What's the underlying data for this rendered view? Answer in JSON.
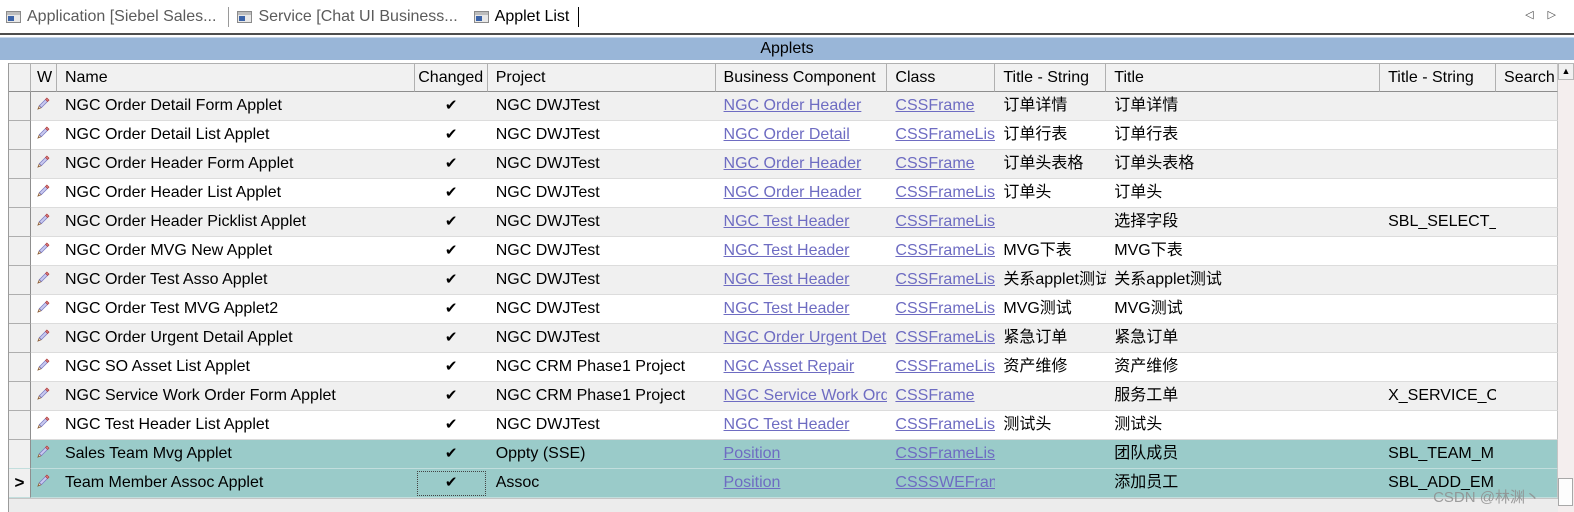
{
  "tab_bar": {
    "tabs": [
      {
        "label": "Application [Siebel Sales...",
        "active": false
      },
      {
        "label": "Service [Chat UI Business...",
        "active": false
      },
      {
        "label": "Applet List",
        "active": true
      }
    ],
    "scroll_left_icon": "◁",
    "scroll_right_icon": "▷"
  },
  "title_bar": {
    "title": "Applets",
    "bg_color": "#99b6d8"
  },
  "table": {
    "columns": [
      "",
      "W",
      "Name",
      "Changed",
      "Project",
      "Business Component",
      "Class",
      "Title - String",
      "Title",
      "Title - String",
      "Search"
    ],
    "current_row_marker": ">",
    "selected_row_color": "#9acbc9",
    "link_color": "#6e6cc2",
    "rows": [
      {
        "name": "NGC Order Detail Form Applet",
        "changed": "✔",
        "project": "NGC DWJTest",
        "bc": "NGC Order Header",
        "cls": "CSSFrame",
        "ts1": "订单详情",
        "title": "订单详情",
        "ts2": "",
        "search": "",
        "selected": false,
        "current": false
      },
      {
        "name": "NGC Order Detail List Applet",
        "changed": "✔",
        "project": "NGC DWJTest",
        "bc": "NGC Order Detail",
        "cls": "CSSFrameList",
        "ts1": "订单行表",
        "title": "订单行表",
        "ts2": "",
        "search": "",
        "selected": false,
        "current": false
      },
      {
        "name": "NGC Order Header Form Applet",
        "changed": "✔",
        "project": "NGC DWJTest",
        "bc": "NGC Order Header",
        "cls": "CSSFrame",
        "ts1": "订单头表格",
        "title": "订单头表格",
        "ts2": "",
        "search": "",
        "selected": false,
        "current": false
      },
      {
        "name": "NGC Order Header List Applet",
        "changed": "✔",
        "project": "NGC DWJTest",
        "bc": "NGC Order Header",
        "cls": "CSSFrameList",
        "ts1": "订单头",
        "title": "订单头",
        "ts2": "",
        "search": "",
        "selected": false,
        "current": false
      },
      {
        "name": "NGC Order Header Picklist Applet",
        "changed": "✔",
        "project": "NGC DWJTest",
        "bc": "NGC Test Header",
        "cls": "CSSFrameList",
        "ts1": "",
        "title": "选择字段",
        "ts2": "SBL_SELECT_",
        "search": "",
        "selected": false,
        "current": false
      },
      {
        "name": "NGC Order MVG New Applet",
        "changed": "✔",
        "project": "NGC DWJTest",
        "bc": "NGC Test Header",
        "cls": "CSSFrameList",
        "ts1": "MVG下表",
        "title": "MVG下表",
        "ts2": "",
        "search": "",
        "selected": false,
        "current": false
      },
      {
        "name": "NGC Order Test Asso Applet",
        "changed": "✔",
        "project": "NGC DWJTest",
        "bc": "NGC Test Header",
        "cls": "CSSFrameList",
        "ts1": "关系applet测试",
        "title": "关系applet测试",
        "ts2": "",
        "search": "",
        "selected": false,
        "current": false
      },
      {
        "name": "NGC Order Test MVG Applet2",
        "changed": "✔",
        "project": "NGC DWJTest",
        "bc": "NGC Test Header",
        "cls": "CSSFrameList",
        "ts1": "MVG测试",
        "title": "MVG测试",
        "ts2": "",
        "search": "",
        "selected": false,
        "current": false
      },
      {
        "name": "NGC Order Urgent Detail Applet",
        "changed": "✔",
        "project": "NGC DWJTest",
        "bc": "NGC Order Urgent Det",
        "cls": "CSSFrameList",
        "ts1": "紧急订单",
        "title": "紧急订单",
        "ts2": "",
        "search": "",
        "selected": false,
        "current": false
      },
      {
        "name": "NGC SO Asset List Applet",
        "changed": "✔",
        "project": "NGC CRM Phase1 Project",
        "bc": "NGC Asset Repair",
        "cls": "CSSFrameList",
        "ts1": "资产维修",
        "title": "资产维修",
        "ts2": "",
        "search": "",
        "selected": false,
        "current": false
      },
      {
        "name": "NGC Service Work Order Form Applet",
        "changed": "✔",
        "project": "NGC CRM Phase1 Project",
        "bc": "NGC Service Work Ord",
        "cls": "CSSFrame",
        "ts1": "",
        "title": "服务工单",
        "ts2": "X_SERVICE_O",
        "search": "",
        "selected": false,
        "current": false
      },
      {
        "name": "NGC Test Header List Applet",
        "changed": "✔",
        "project": "NGC DWJTest",
        "bc": "NGC Test Header",
        "cls": "CSSFrameList",
        "ts1": "测试头",
        "title": "测试头",
        "ts2": "",
        "search": "",
        "selected": false,
        "current": false
      },
      {
        "name": "Sales Team Mvg Applet",
        "changed": "✔",
        "project": "Oppty (SSE)",
        "bc": "Position",
        "cls": "CSSFrameList",
        "ts1": "",
        "title": "团队成员",
        "ts2": "SBL_TEAM_M",
        "search": "",
        "selected": true,
        "current": false
      },
      {
        "name": "Team Member Assoc Applet",
        "changed": "✔",
        "project": "Assoc",
        "bc": "Position",
        "cls": "CSSSWEFrame",
        "ts1": "",
        "title": "添加员工",
        "ts2": "SBL_ADD_EM",
        "search": "",
        "selected": true,
        "current": true
      }
    ]
  },
  "scrollbar": {
    "up_icon": "▲"
  },
  "watermark": "CSDN @林渊丶"
}
